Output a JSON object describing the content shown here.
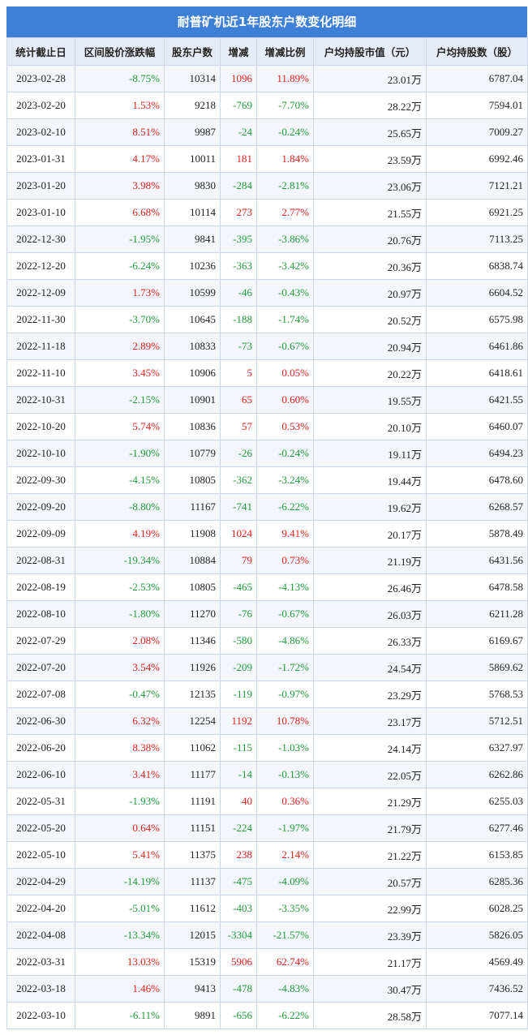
{
  "header": {
    "title": "耐普矿机近1年股东户数变化明细"
  },
  "table": {
    "columns": [
      "统计截止日",
      "区间股价涨跌幅",
      "股东户数",
      "增减",
      "增减比例",
      "户均持股市值（元）",
      "户均持股数（股）"
    ],
    "rows": [
      [
        "2023-02-28",
        "-8.75%",
        "10314",
        "1096",
        "11.89%",
        "23.01万",
        "6787.04"
      ],
      [
        "2023-02-20",
        "1.53%",
        "9218",
        "-769",
        "-7.70%",
        "28.22万",
        "7594.01"
      ],
      [
        "2023-02-10",
        "8.51%",
        "9987",
        "-24",
        "-0.24%",
        "25.65万",
        "7009.27"
      ],
      [
        "2023-01-31",
        "4.17%",
        "10011",
        "181",
        "1.84%",
        "23.59万",
        "6992.46"
      ],
      [
        "2023-01-20",
        "3.98%",
        "9830",
        "-284",
        "-2.81%",
        "23.06万",
        "7121.21"
      ],
      [
        "2023-01-10",
        "6.68%",
        "10114",
        "273",
        "2.77%",
        "21.55万",
        "6921.25"
      ],
      [
        "2022-12-30",
        "-1.95%",
        "9841",
        "-395",
        "-3.86%",
        "20.76万",
        "7113.25"
      ],
      [
        "2022-12-20",
        "-6.24%",
        "10236",
        "-363",
        "-3.42%",
        "20.36万",
        "6838.74"
      ],
      [
        "2022-12-09",
        "1.73%",
        "10599",
        "-46",
        "-0.43%",
        "20.97万",
        "6604.52"
      ],
      [
        "2022-11-30",
        "-3.70%",
        "10645",
        "-188",
        "-1.74%",
        "20.52万",
        "6575.98"
      ],
      [
        "2022-11-18",
        "2.89%",
        "10833",
        "-73",
        "-0.67%",
        "20.94万",
        "6461.86"
      ],
      [
        "2022-11-10",
        "3.45%",
        "10906",
        "5",
        "0.05%",
        "20.22万",
        "6418.61"
      ],
      [
        "2022-10-31",
        "-2.15%",
        "10901",
        "65",
        "0.60%",
        "19.55万",
        "6421.55"
      ],
      [
        "2022-10-20",
        "5.74%",
        "10836",
        "57",
        "0.53%",
        "20.10万",
        "6460.07"
      ],
      [
        "2022-10-10",
        "-1.90%",
        "10779",
        "-26",
        "-0.24%",
        "19.11万",
        "6494.23"
      ],
      [
        "2022-09-30",
        "-4.15%",
        "10805",
        "-362",
        "-3.24%",
        "19.44万",
        "6478.60"
      ],
      [
        "2022-09-20",
        "-8.80%",
        "11167",
        "-741",
        "-6.22%",
        "19.62万",
        "6268.57"
      ],
      [
        "2022-09-09",
        "4.19%",
        "11908",
        "1024",
        "9.41%",
        "20.17万",
        "5878.49"
      ],
      [
        "2022-08-31",
        "-19.34%",
        "10884",
        "79",
        "0.73%",
        "21.19万",
        "6431.56"
      ],
      [
        "2022-08-19",
        "-2.53%",
        "10805",
        "-465",
        "-4.13%",
        "26.46万",
        "6478.58"
      ],
      [
        "2022-08-10",
        "-1.80%",
        "11270",
        "-76",
        "-0.67%",
        "26.03万",
        "6211.28"
      ],
      [
        "2022-07-29",
        "2.08%",
        "11346",
        "-580",
        "-4.86%",
        "26.33万",
        "6169.67"
      ],
      [
        "2022-07-20",
        "3.54%",
        "11926",
        "-209",
        "-1.72%",
        "24.54万",
        "5869.62"
      ],
      [
        "2022-07-08",
        "-0.47%",
        "12135",
        "-119",
        "-0.97%",
        "23.29万",
        "5768.53"
      ],
      [
        "2022-06-30",
        "6.32%",
        "12254",
        "1192",
        "10.78%",
        "23.17万",
        "5712.51"
      ],
      [
        "2022-06-20",
        "8.38%",
        "11062",
        "-115",
        "-1.03%",
        "24.14万",
        "6327.97"
      ],
      [
        "2022-06-10",
        "3.41%",
        "11177",
        "-14",
        "-0.13%",
        "22.05万",
        "6262.86"
      ],
      [
        "2022-05-31",
        "-1.93%",
        "11191",
        "40",
        "0.36%",
        "21.29万",
        "6255.03"
      ],
      [
        "2022-05-20",
        "0.64%",
        "11151",
        "-224",
        "-1.97%",
        "21.79万",
        "6277.46"
      ],
      [
        "2022-05-10",
        "5.41%",
        "11375",
        "238",
        "2.14%",
        "21.22万",
        "6153.85"
      ],
      [
        "2022-04-29",
        "-14.19%",
        "11137",
        "-475",
        "-4.09%",
        "20.57万",
        "6285.36"
      ],
      [
        "2022-04-20",
        "-5.01%",
        "11612",
        "-403",
        "-3.35%",
        "22.99万",
        "6028.25"
      ],
      [
        "2022-04-08",
        "-13.34%",
        "12015",
        "-3304",
        "-21.57%",
        "23.39万",
        "5826.05"
      ],
      [
        "2022-03-31",
        "13.03%",
        "15319",
        "5906",
        "62.74%",
        "21.17万",
        "4569.49"
      ],
      [
        "2022-03-18",
        "1.46%",
        "9413",
        "-478",
        "-4.83%",
        "30.47万",
        "7436.52"
      ],
      [
        "2022-03-10",
        "-6.11%",
        "9891",
        "-656",
        "-6.22%",
        "28.58万",
        "7077.14"
      ]
    ]
  }
}
